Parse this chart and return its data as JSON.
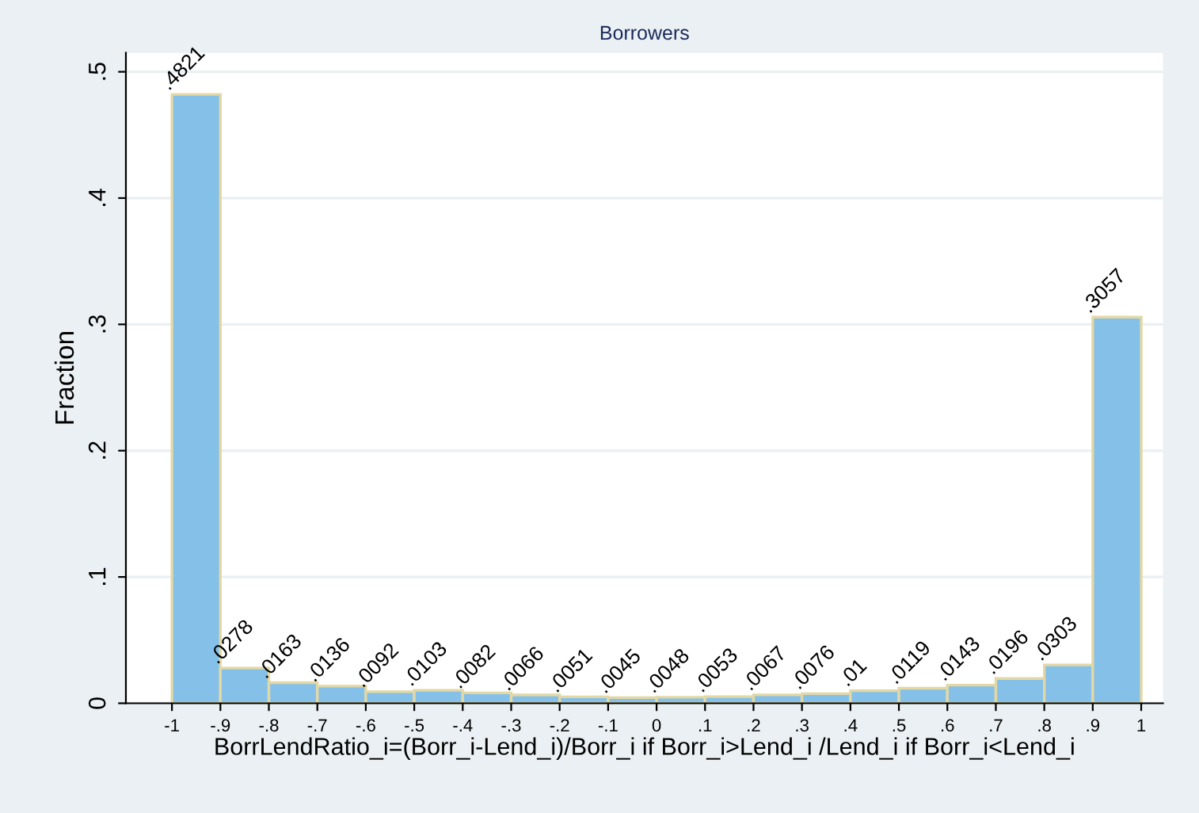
{
  "chart_data": {
    "type": "histogram",
    "title": "Borrowers",
    "xlabel": "BorrLendRatio_i=(Borr_i-Lend_i)/Borr_i if Borr_i>Lend_i /Lend_i if Borr_i<Lend_i",
    "ylabel": "Fraction",
    "bins": [
      -1,
      -0.9,
      -0.8,
      -0.7,
      -0.6,
      -0.5,
      -0.4,
      -0.3,
      -0.2,
      -0.1,
      0,
      0.1,
      0.2,
      0.3,
      0.4,
      0.5,
      0.6,
      0.7,
      0.8,
      0.9,
      1
    ],
    "values": [
      0.4821,
      0.0278,
      0.0163,
      0.0136,
      0.0092,
      0.0103,
      0.0082,
      0.0066,
      0.0051,
      0.0045,
      0.0048,
      0.0053,
      0.0067,
      0.0076,
      0.01,
      0.0119,
      0.0143,
      0.0196,
      0.0303,
      0.3057
    ],
    "value_labels": [
      ".4821",
      ".0278",
      ".0163",
      ".0136",
      ".0092",
      ".0103",
      ".0082",
      ".0066",
      ".0051",
      ".0045",
      ".0048",
      ".0053",
      ".0067",
      ".0076",
      ".01",
      ".0119",
      ".0143",
      ".0196",
      ".0303",
      ".3057"
    ],
    "color": "#85c0e9",
    "xlim": [
      -1.095,
      1.045
    ],
    "xticks": [
      -1,
      {
        "value": -0.9,
        "label": "-.9"
      },
      {
        "value": -0.8,
        "label": "-.8"
      },
      {
        "value": -0.7,
        "label": "-.7"
      },
      {
        "value": -0.6,
        "label": "-.6"
      },
      {
        "value": -0.5,
        "label": "-.5"
      },
      {
        "value": -0.4,
        "label": "-.4"
      },
      {
        "value": -0.3,
        "label": "-.3"
      },
      {
        "value": -0.2,
        "label": "-.2"
      },
      {
        "value": -0.1,
        "label": "-.1"
      },
      0,
      {
        "value": 0.1,
        "label": ".1"
      },
      {
        "value": 0.2,
        "label": ".2"
      },
      {
        "value": 0.3,
        "label": ".3"
      },
      {
        "value": 0.4,
        "label": ".4"
      },
      {
        "value": 0.5,
        "label": ".5"
      },
      {
        "value": 0.6,
        "label": ".6"
      },
      {
        "value": 0.7,
        "label": ".7"
      },
      {
        "value": 0.8,
        "label": ".8"
      },
      {
        "value": 0.9,
        "label": ".9"
      },
      1
    ],
    "ylim": [
      0,
      0.515
    ],
    "yticks": [
      0,
      {
        "value": 0.1,
        "label": ".1"
      },
      {
        "value": 0.2,
        "label": ".2"
      },
      {
        "value": 0.3,
        "label": ".3"
      },
      {
        "value": 0.4,
        "label": ".4"
      },
      {
        "value": 0.5,
        "label": ".5"
      }
    ],
    "grid": "y"
  }
}
